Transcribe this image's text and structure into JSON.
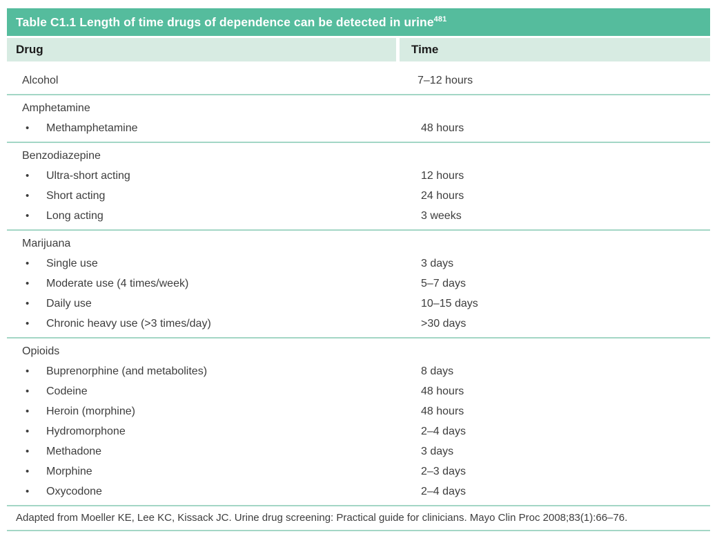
{
  "table": {
    "title": "Table C1.1 Length of time drugs of dependence can be detected in urine",
    "title_superscript": "481",
    "columns": {
      "drug": "Drug",
      "time": "Time"
    },
    "sections": [
      {
        "rows": [
          {
            "label": "Alcohol",
            "time": "7–12 hours",
            "bullet": false
          }
        ]
      },
      {
        "rows": [
          {
            "label": "Amphetamine",
            "time": "",
            "bullet": false
          },
          {
            "label": "Methamphetamine",
            "time": "48 hours",
            "bullet": true
          }
        ]
      },
      {
        "rows": [
          {
            "label": "Benzodiazepine",
            "time": "",
            "bullet": false
          },
          {
            "label": "Ultra-short acting",
            "time": "12 hours",
            "bullet": true
          },
          {
            "label": "Short acting",
            "time": "24 hours",
            "bullet": true
          },
          {
            "label": "Long acting",
            "time": "3 weeks",
            "bullet": true
          }
        ]
      },
      {
        "rows": [
          {
            "label": "Marijuana",
            "time": "",
            "bullet": false
          },
          {
            "label": "Single use",
            "time": "3 days",
            "bullet": true
          },
          {
            "label": "Moderate use (4 times/week)",
            "time": "5–7 days",
            "bullet": true
          },
          {
            "label": "Daily use",
            "time": "10–15 days",
            "bullet": true
          },
          {
            "label": "Chronic heavy use (>3 times/day)",
            "time": ">30 days",
            "bullet": true
          }
        ]
      },
      {
        "rows": [
          {
            "label": "Opioids",
            "time": "",
            "bullet": false
          },
          {
            "label": "Buprenorphine (and metabolites)",
            "time": "8 days",
            "bullet": true
          },
          {
            "label": "Codeine",
            "time": "48 hours",
            "bullet": true
          },
          {
            "label": "Heroin (morphine)",
            "time": "48 hours",
            "bullet": true
          },
          {
            "label": "Hydromorphone",
            "time": "2–4 days",
            "bullet": true
          },
          {
            "label": "Methadone",
            "time": "3 days",
            "bullet": true
          },
          {
            "label": "Morphine",
            "time": "2–3 days",
            "bullet": true
          },
          {
            "label": "Oxycodone",
            "time": "2–4 days",
            "bullet": true
          }
        ]
      }
    ],
    "footer": "Adapted from Moeller KE, Lee KC, Kissack JC. Urine drug screening: Practical guide for clinicians. Mayo Clin Proc 2008;83(1):66–76.",
    "bullet_glyph": "•",
    "colors": {
      "header_bar": "#55bc9d",
      "column_header_bg": "#d7ebe2",
      "divider": "#a3d6c5",
      "title_text": "#ffffff",
      "body_text": "#3d3d3d"
    }
  }
}
